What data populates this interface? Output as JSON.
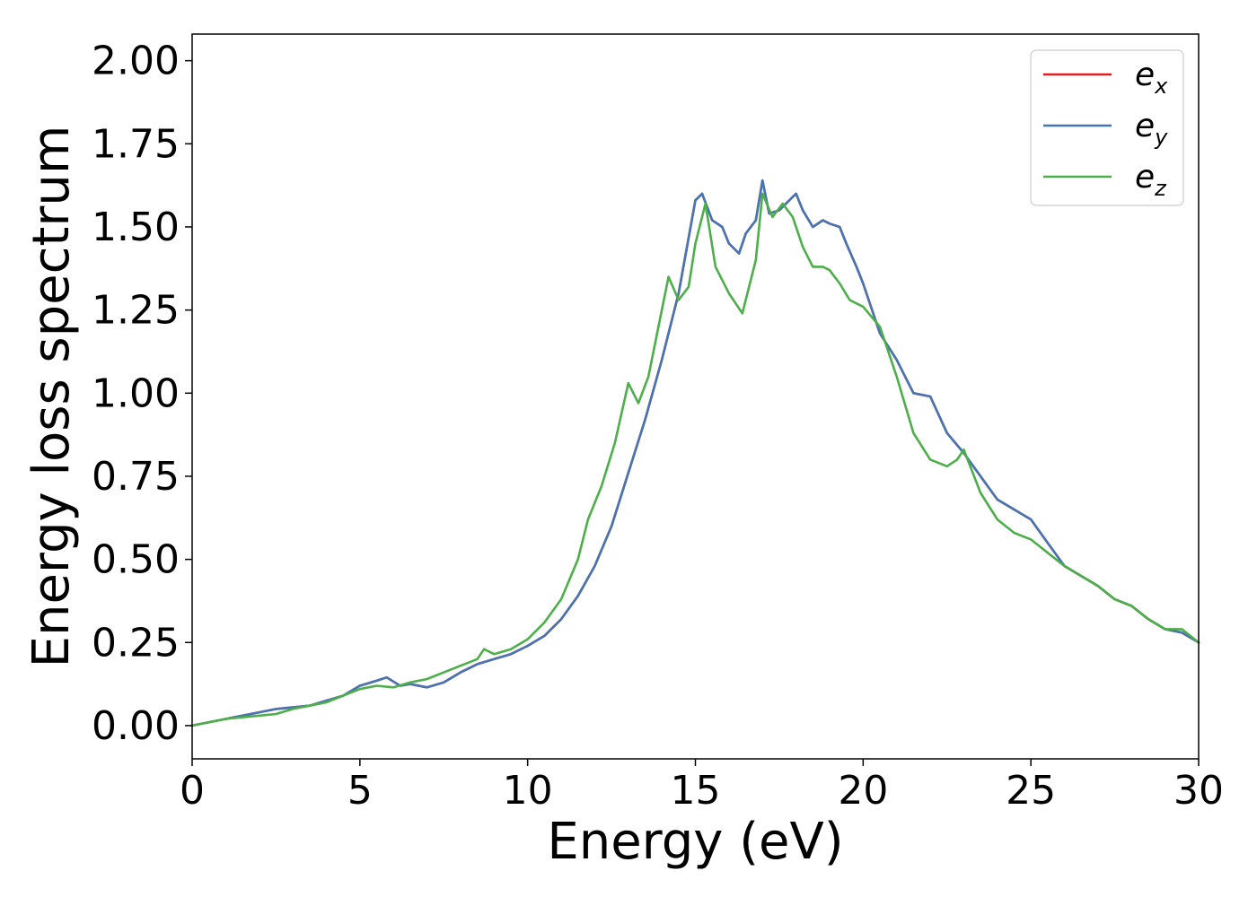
{
  "chart_data": {
    "type": "line",
    "title": "",
    "xlabel": "Energy (eV)",
    "ylabel": "Energy loss spectrum",
    "xlim": [
      0,
      30
    ],
    "ylim": [
      -0.1,
      2.08
    ],
    "xticks": [
      0,
      5,
      10,
      15,
      20,
      25,
      30
    ],
    "xtick_labels": [
      "0",
      "5",
      "10",
      "15",
      "20",
      "25",
      "30"
    ],
    "yticks": [
      0.0,
      0.25,
      0.5,
      0.75,
      1.0,
      1.25,
      1.5,
      1.75,
      2.0
    ],
    "ytick_labels": [
      "0.00",
      "0.25",
      "0.50",
      "0.75",
      "1.00",
      "1.25",
      "1.50",
      "1.75",
      "2.00"
    ],
    "grid": false,
    "legend_position": "top-right",
    "series": [
      {
        "name": "e",
        "subscript": "x",
        "color": "#e41a1c",
        "x": [
          0,
          1,
          2,
          2.5,
          3,
          3.5,
          4,
          4.5,
          5,
          5.5,
          5.8,
          6.2,
          6.5,
          7,
          7.5,
          8,
          8.5,
          9,
          9.5,
          10,
          10.5,
          11,
          11.5,
          12,
          12.5,
          13,
          13.5,
          14,
          14.5,
          15,
          15.2,
          15.5,
          15.8,
          16,
          16.3,
          16.5,
          16.8,
          17,
          17.2,
          17.5,
          17.8,
          18,
          18.2,
          18.5,
          18.8,
          19,
          19.3,
          19.5,
          19.8,
          20,
          20.5,
          21,
          21.5,
          22,
          22.5,
          23,
          23.5,
          24,
          24.5,
          25,
          25.5,
          26,
          26.5,
          27,
          27.5,
          28,
          28.5,
          29,
          29.5,
          30
        ],
        "y": [
          0.0,
          0.02,
          0.04,
          0.05,
          0.055,
          0.06,
          0.075,
          0.09,
          0.12,
          0.135,
          0.145,
          0.12,
          0.125,
          0.115,
          0.13,
          0.16,
          0.185,
          0.2,
          0.215,
          0.24,
          0.27,
          0.32,
          0.39,
          0.48,
          0.6,
          0.76,
          0.92,
          1.1,
          1.3,
          1.58,
          1.6,
          1.52,
          1.5,
          1.45,
          1.42,
          1.48,
          1.52,
          1.64,
          1.54,
          1.55,
          1.58,
          1.6,
          1.55,
          1.5,
          1.52,
          1.51,
          1.5,
          1.45,
          1.38,
          1.33,
          1.18,
          1.1,
          1.0,
          0.99,
          0.88,
          0.82,
          0.75,
          0.68,
          0.65,
          0.62,
          0.55,
          0.48,
          0.45,
          0.42,
          0.38,
          0.36,
          0.32,
          0.29,
          0.28,
          0.25
        ]
      },
      {
        "name": "e",
        "subscript": "y",
        "color": "#4575b4",
        "x": [
          0,
          1,
          2,
          2.5,
          3,
          3.5,
          4,
          4.5,
          5,
          5.5,
          5.8,
          6.2,
          6.5,
          7,
          7.5,
          8,
          8.5,
          9,
          9.5,
          10,
          10.5,
          11,
          11.5,
          12,
          12.5,
          13,
          13.5,
          14,
          14.5,
          15,
          15.2,
          15.5,
          15.8,
          16,
          16.3,
          16.5,
          16.8,
          17,
          17.2,
          17.5,
          17.8,
          18,
          18.2,
          18.5,
          18.8,
          19,
          19.3,
          19.5,
          19.8,
          20,
          20.5,
          21,
          21.5,
          22,
          22.5,
          23,
          23.5,
          24,
          24.5,
          25,
          25.5,
          26,
          26.5,
          27,
          27.5,
          28,
          28.5,
          29,
          29.5,
          30
        ],
        "y": [
          0.0,
          0.02,
          0.04,
          0.05,
          0.055,
          0.06,
          0.075,
          0.09,
          0.12,
          0.135,
          0.145,
          0.12,
          0.125,
          0.115,
          0.13,
          0.16,
          0.185,
          0.2,
          0.215,
          0.24,
          0.27,
          0.32,
          0.39,
          0.48,
          0.6,
          0.76,
          0.92,
          1.1,
          1.3,
          1.58,
          1.6,
          1.52,
          1.5,
          1.45,
          1.42,
          1.48,
          1.52,
          1.64,
          1.54,
          1.55,
          1.58,
          1.6,
          1.55,
          1.5,
          1.52,
          1.51,
          1.5,
          1.45,
          1.38,
          1.33,
          1.18,
          1.1,
          1.0,
          0.99,
          0.88,
          0.82,
          0.75,
          0.68,
          0.65,
          0.62,
          0.55,
          0.48,
          0.45,
          0.42,
          0.38,
          0.36,
          0.32,
          0.29,
          0.28,
          0.25
        ]
      },
      {
        "name": "e",
        "subscript": "z",
        "color": "#4daf4a",
        "x": [
          0,
          1,
          2,
          2.5,
          3,
          3.5,
          4,
          4.5,
          5,
          5.5,
          6,
          6.5,
          7,
          7.5,
          8,
          8.5,
          8.7,
          9,
          9.5,
          10,
          10.5,
          11,
          11.5,
          11.8,
          12.2,
          12.6,
          13,
          13.3,
          13.6,
          14,
          14.2,
          14.5,
          14.8,
          15,
          15.3,
          15.6,
          16,
          16.4,
          16.8,
          17,
          17.3,
          17.6,
          17.9,
          18.2,
          18.5,
          18.8,
          19,
          19.3,
          19.6,
          20,
          20.5,
          21,
          21.5,
          22,
          22.5,
          22.8,
          23,
          23.5,
          24,
          24.5,
          25,
          25.5,
          26,
          26.5,
          27,
          27.5,
          28,
          28.5,
          29,
          29.5,
          30
        ],
        "y": [
          0.0,
          0.02,
          0.03,
          0.035,
          0.05,
          0.06,
          0.07,
          0.09,
          0.11,
          0.12,
          0.115,
          0.13,
          0.14,
          0.16,
          0.18,
          0.2,
          0.23,
          0.215,
          0.23,
          0.26,
          0.31,
          0.38,
          0.5,
          0.62,
          0.72,
          0.85,
          1.03,
          0.97,
          1.05,
          1.25,
          1.35,
          1.28,
          1.32,
          1.45,
          1.57,
          1.38,
          1.3,
          1.24,
          1.4,
          1.6,
          1.53,
          1.57,
          1.53,
          1.44,
          1.38,
          1.38,
          1.37,
          1.33,
          1.28,
          1.26,
          1.2,
          1.05,
          0.88,
          0.8,
          0.78,
          0.8,
          0.83,
          0.7,
          0.62,
          0.58,
          0.56,
          0.52,
          0.48,
          0.45,
          0.42,
          0.38,
          0.36,
          0.32,
          0.29,
          0.29,
          0.25
        ]
      }
    ]
  }
}
